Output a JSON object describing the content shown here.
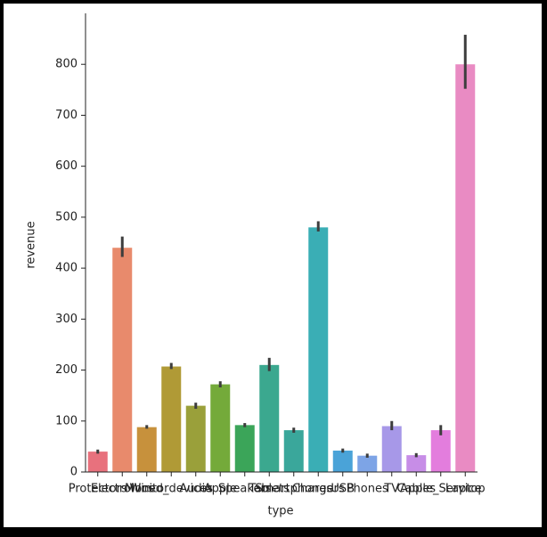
{
  "chart_data": {
    "type": "bar",
    "xlabel": "type",
    "ylabel": "revenue",
    "categories": [
      "Protectors",
      "Electronics",
      "Monitor",
      "Wired_devices",
      "Audio",
      "Apple",
      "Speakers",
      "Tablets",
      "Smartphones",
      "Chargers",
      "USB",
      "Phones",
      "TV",
      "Cables",
      "Apple_Service",
      "Laptop"
    ],
    "values": [
      40,
      440,
      88,
      207,
      130,
      172,
      92,
      210,
      82,
      480,
      42,
      32,
      90,
      33,
      82,
      800
    ],
    "ci_low": [
      36,
      422,
      85,
      202,
      124,
      166,
      88,
      198,
      77,
      472,
      38,
      28,
      82,
      29,
      72,
      752
    ],
    "ci_high": [
      44,
      462,
      92,
      214,
      136,
      178,
      96,
      224,
      87,
      492,
      46,
      36,
      100,
      37,
      92,
      858
    ],
    "colors": [
      "#e8717d",
      "#e88a6c",
      "#c7913c",
      "#b09a36",
      "#9aa03a",
      "#74aa3a",
      "#3ba559",
      "#3ba88f",
      "#3aa79b",
      "#3aaeb5",
      "#4aa3d8",
      "#7da4e6",
      "#a798e8",
      "#c78de7",
      "#e37ddd",
      "#e98bc3"
    ],
    "ylim": [
      0,
      900
    ],
    "yticks": [
      0,
      100,
      200,
      300,
      400,
      500,
      600,
      700,
      800
    ]
  }
}
